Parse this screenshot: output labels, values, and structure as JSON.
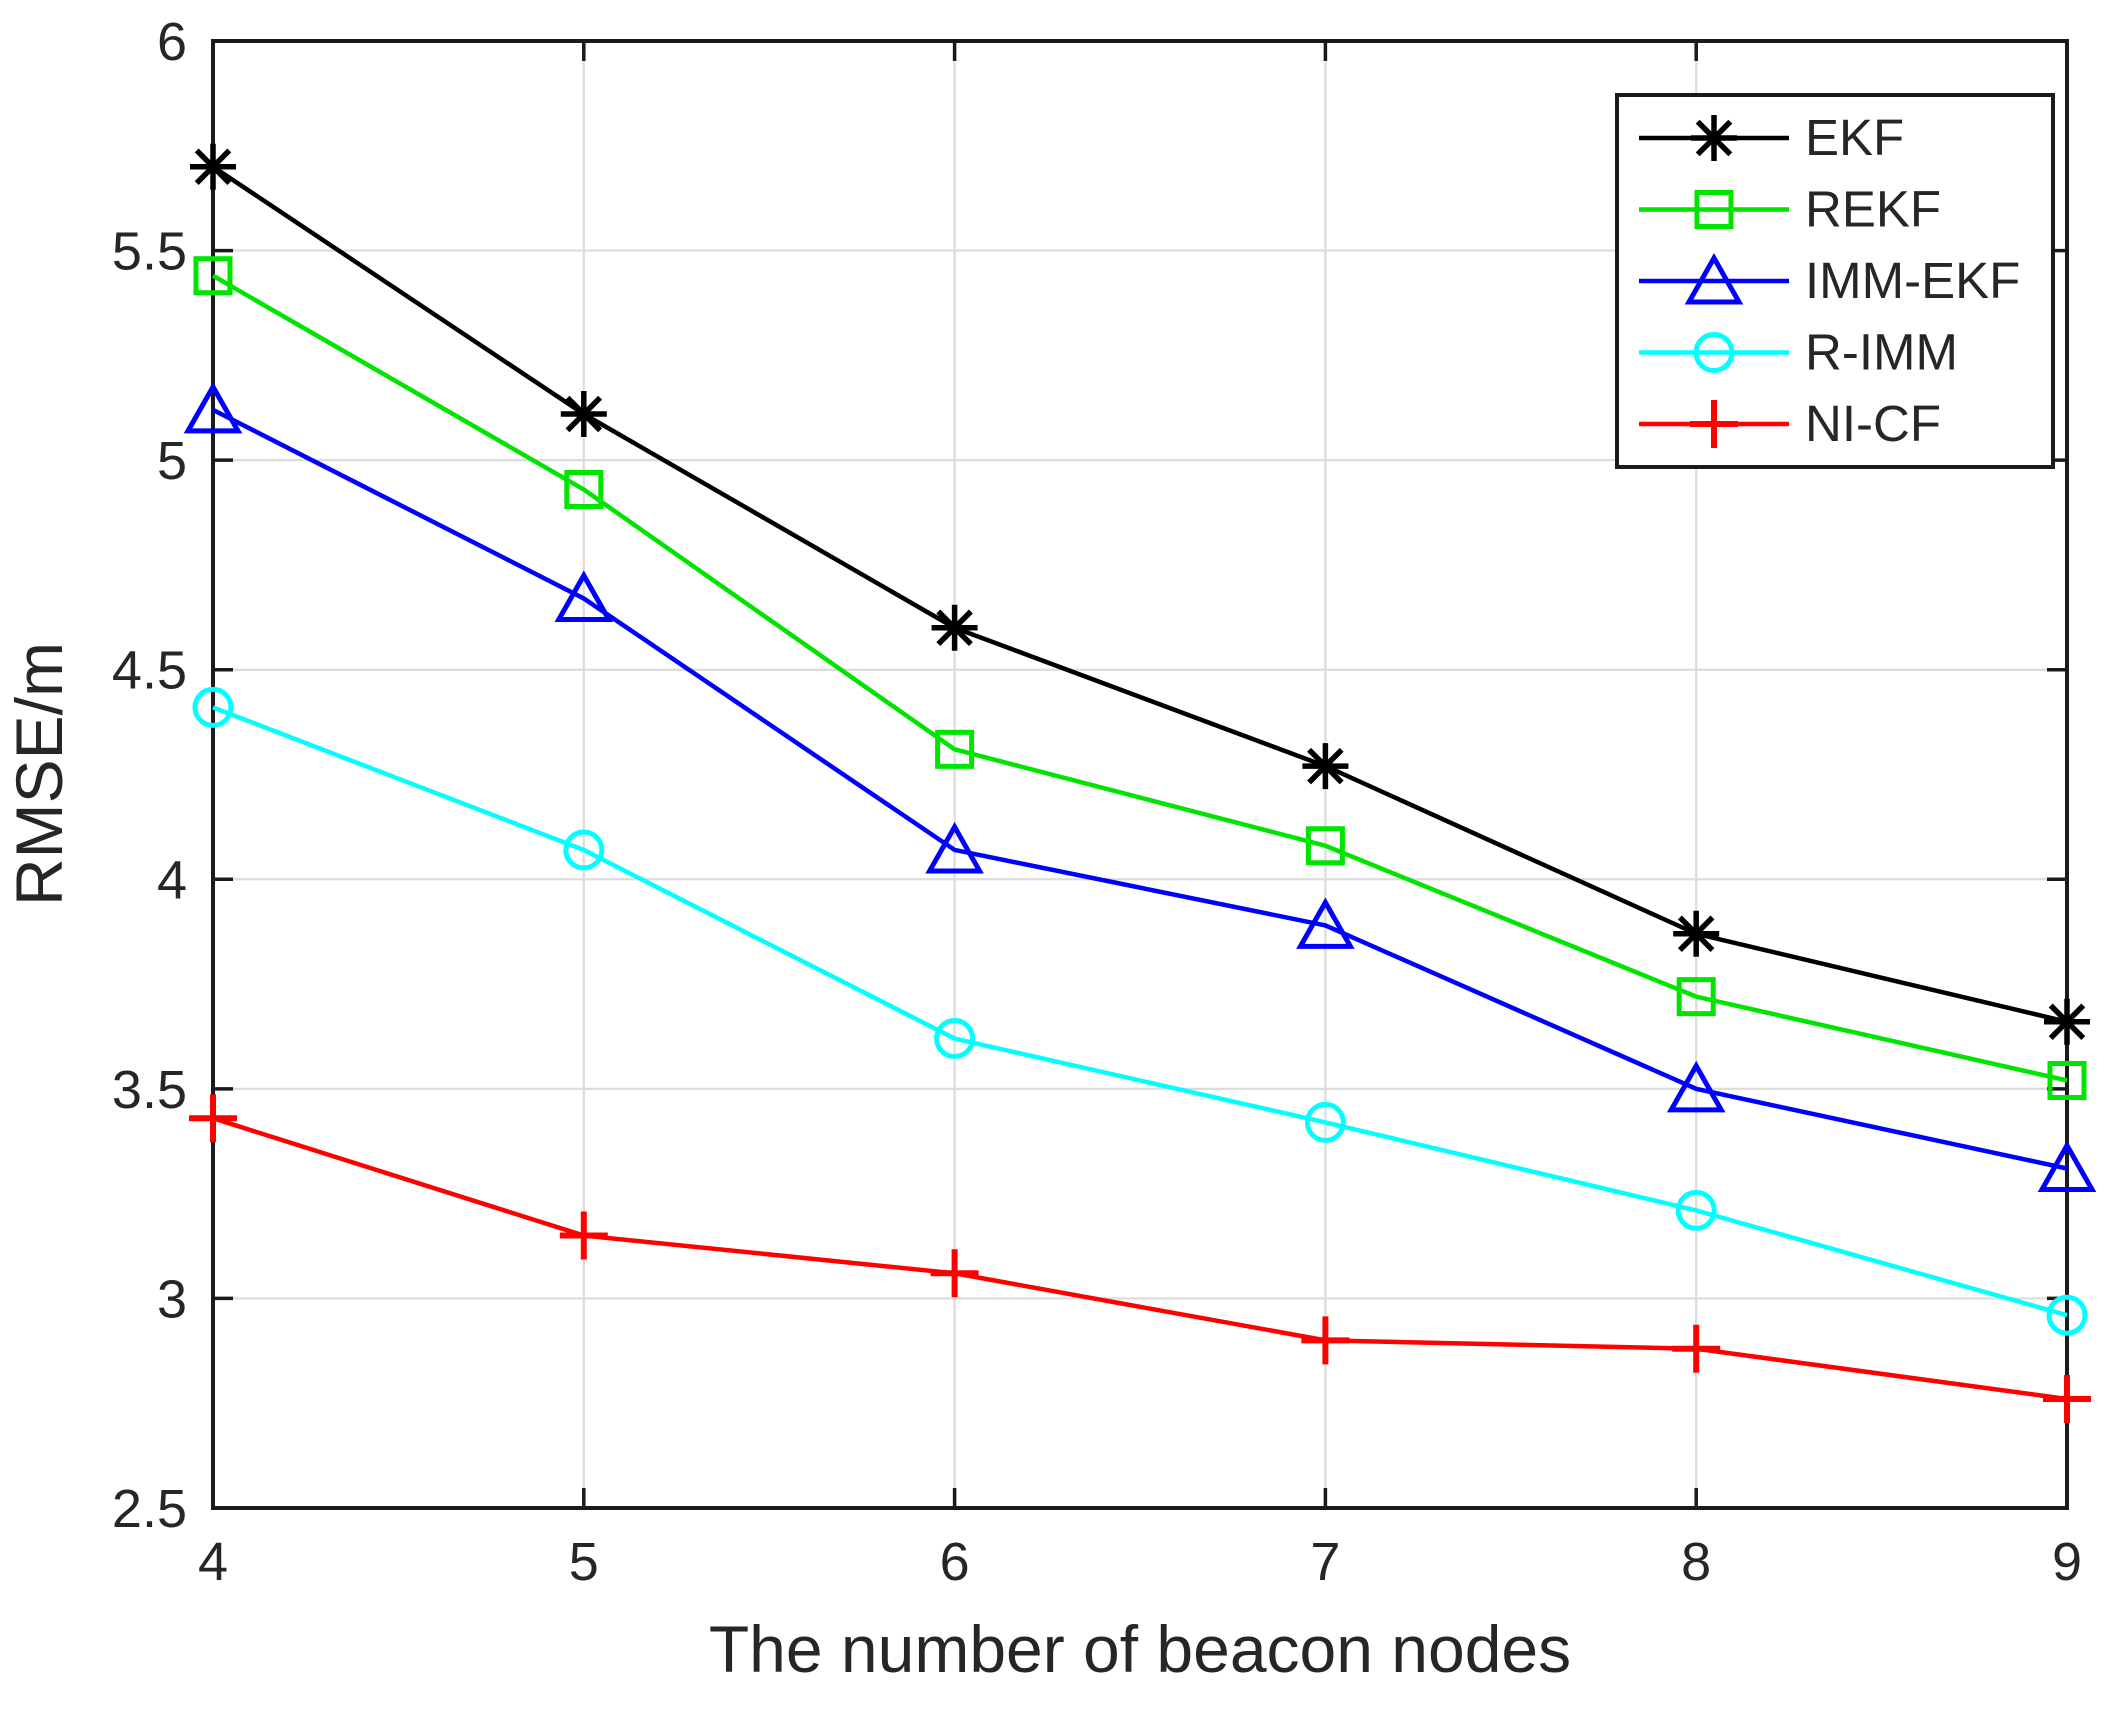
{
  "chart_data": {
    "type": "line",
    "title": "",
    "xlabel": "The number of beacon nodes",
    "ylabel": "RMSE/m",
    "x": [
      4,
      5,
      6,
      7,
      8,
      9
    ],
    "xlim": [
      4,
      9
    ],
    "ylim": [
      2.5,
      6
    ],
    "x_ticks": [
      4,
      5,
      6,
      7,
      8,
      9
    ],
    "y_ticks": [
      2.5,
      3,
      3.5,
      4,
      4.5,
      5,
      5.5,
      6
    ],
    "grid": true,
    "legend_position": "top-right",
    "series": [
      {
        "name": "EKF",
        "color": "#000000",
        "marker": "asterisk",
        "values": [
          5.7,
          5.11,
          4.6,
          4.27,
          3.87,
          3.66
        ]
      },
      {
        "name": "REKF",
        "color": "#00E400",
        "marker": "square",
        "values": [
          5.44,
          4.93,
          4.31,
          4.08,
          3.72,
          3.52
        ]
      },
      {
        "name": "IMM-EKF",
        "color": "#0000FF",
        "marker": "triangle-up",
        "values": [
          5.12,
          4.67,
          4.07,
          3.89,
          3.5,
          3.31
        ]
      },
      {
        "name": "R-IMM",
        "color": "#00FFFF",
        "marker": "circle",
        "values": [
          4.41,
          4.07,
          3.62,
          3.42,
          3.21,
          2.96
        ]
      },
      {
        "name": "NI-CF",
        "color": "#FF0000",
        "marker": "plus",
        "values": [
          3.43,
          3.15,
          3.06,
          2.9,
          2.88,
          2.76
        ]
      }
    ],
    "colors": {
      "grid": "#DCDCDC",
      "axis": "#1A1A1A",
      "text": "#262626",
      "background": "#FFFFFF"
    }
  }
}
